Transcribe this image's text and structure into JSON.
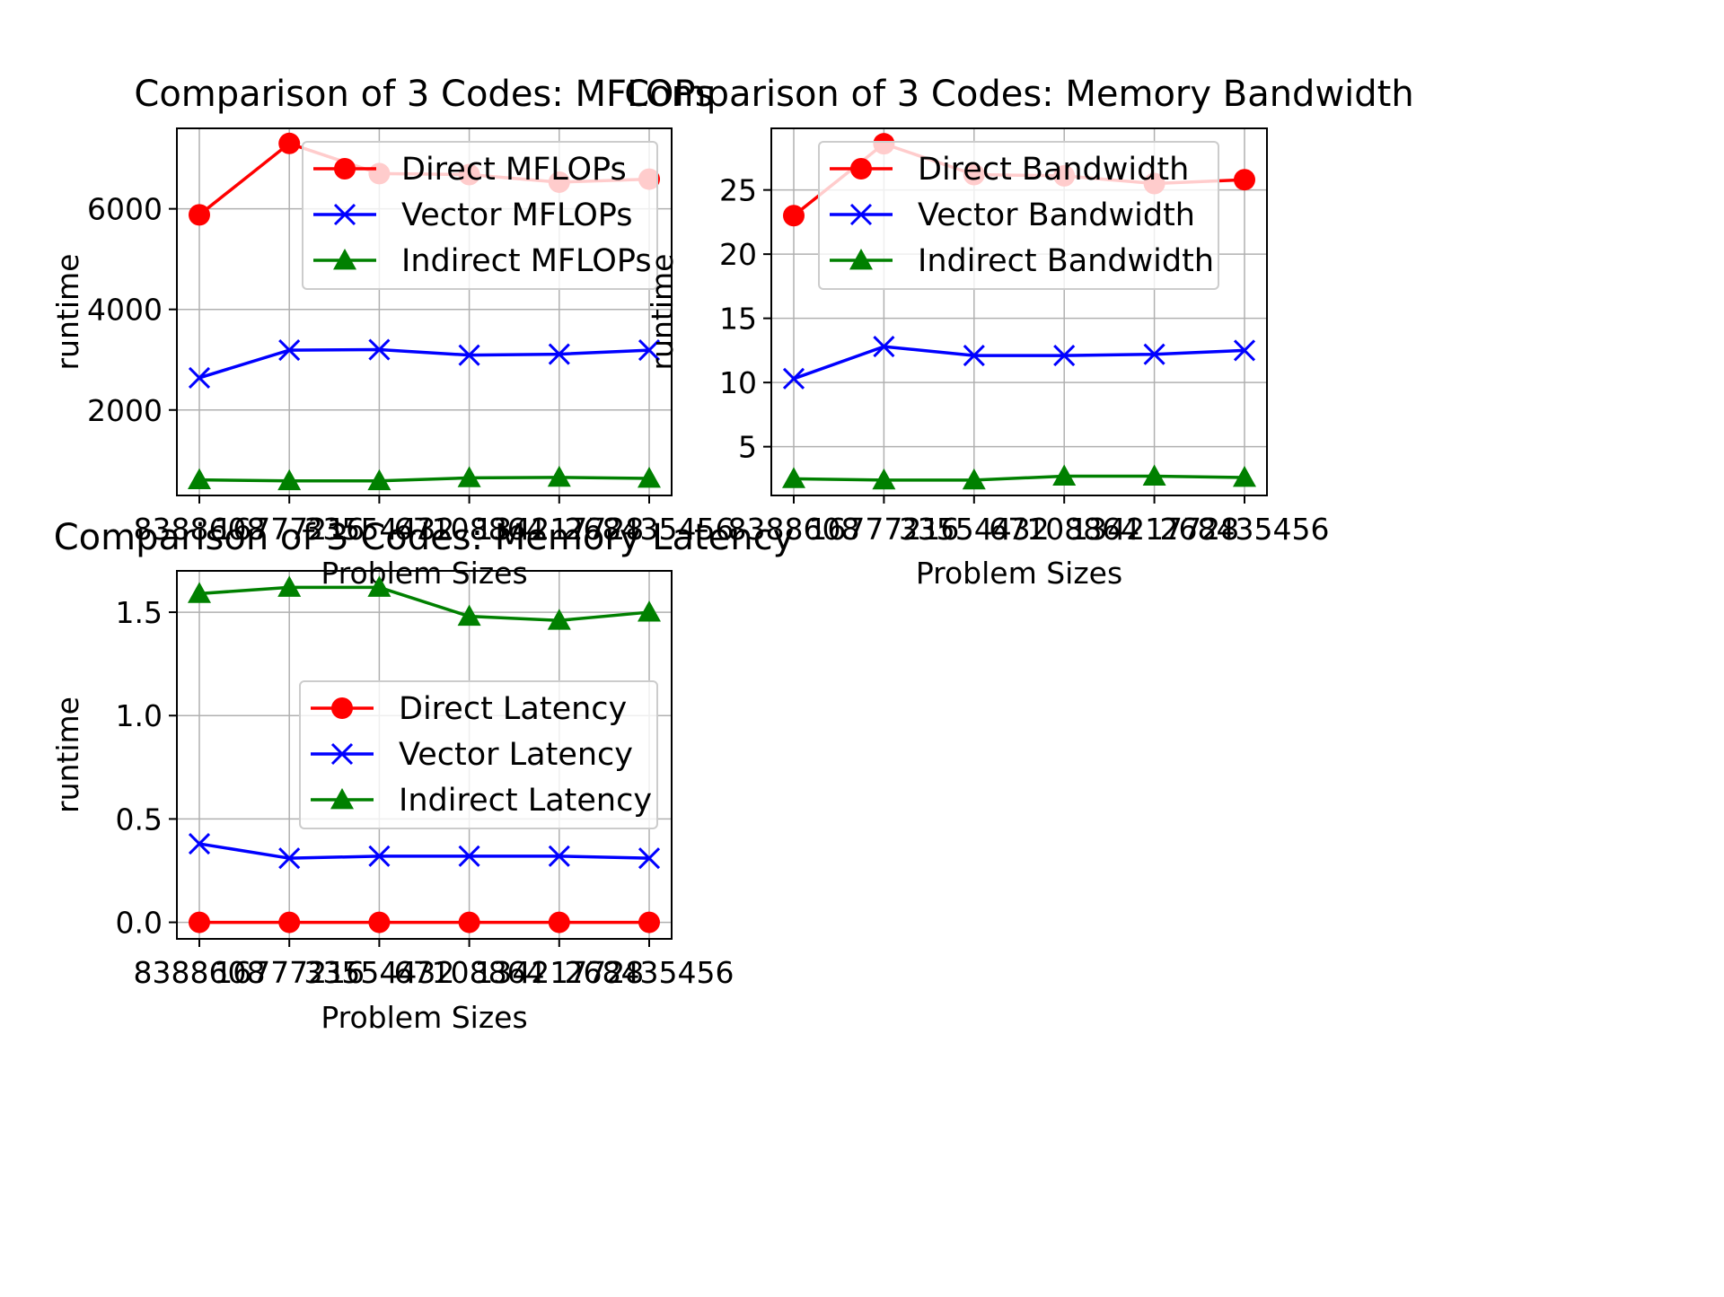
{
  "chart_data": [
    {
      "type": "line",
      "title": "Comparison of 3 Codes: MFLOPs",
      "xlabel": "Problem Sizes",
      "ylabel": "runtime",
      "categories": [
        "8388608",
        "16777216",
        "33554432",
        "67108864",
        "134217728",
        "268435456"
      ],
      "yticks": [
        2000,
        4000,
        6000
      ],
      "ylim": [
        300,
        7600
      ],
      "grid": true,
      "legend_position": "upper right",
      "series": [
        {
          "name": "Direct MFLOPs",
          "color": "#ff0000",
          "marker": "circle",
          "values": [
            5880,
            7300,
            6700,
            6680,
            6530,
            6590
          ]
        },
        {
          "name": "Vector MFLOPs",
          "color": "#0000ff",
          "marker": "x",
          "values": [
            2640,
            3190,
            3200,
            3090,
            3110,
            3190
          ]
        },
        {
          "name": "Indirect MFLOPs",
          "color": "#008000",
          "marker": "triangle",
          "values": [
            610,
            590,
            590,
            650,
            660,
            640
          ]
        }
      ]
    },
    {
      "type": "line",
      "title": "Comparison of 3 Codes: Memory Bandwidth",
      "xlabel": "Problem Sizes",
      "ylabel": "runtime",
      "categories": [
        "8388608",
        "16777216",
        "33554432",
        "67108864",
        "134217728",
        "268435456"
      ],
      "yticks": [
        5,
        10,
        15,
        20,
        25
      ],
      "ylim": [
        1.2,
        29.8
      ],
      "grid": true,
      "legend_position": "upper right",
      "series": [
        {
          "name": "Direct Bandwidth",
          "color": "#ff0000",
          "marker": "circle",
          "values": [
            23.0,
            28.6,
            26.2,
            26.1,
            25.5,
            25.8
          ]
        },
        {
          "name": "Vector Bandwidth",
          "color": "#0000ff",
          "marker": "x",
          "values": [
            10.3,
            12.8,
            12.1,
            12.1,
            12.2,
            12.5
          ]
        },
        {
          "name": "Indirect Bandwidth",
          "color": "#008000",
          "marker": "triangle",
          "values": [
            2.5,
            2.4,
            2.4,
            2.7,
            2.7,
            2.6
          ]
        }
      ]
    },
    {
      "type": "line",
      "title": "Comparison of 3 Codes: Memory Latency",
      "xlabel": "Problem Sizes",
      "ylabel": "runtime",
      "categories": [
        "8388608",
        "16777216",
        "33554432",
        "67108864",
        "134217728",
        "268435456"
      ],
      "yticks": [
        "0.0",
        "0.5",
        "1.0",
        "1.5"
      ],
      "ylim": [
        -0.08,
        1.7
      ],
      "grid": true,
      "legend_position": "center right",
      "series": [
        {
          "name": "Direct Latency",
          "color": "#ff0000",
          "marker": "circle",
          "values": [
            0.0,
            0.0,
            0.0,
            0.0,
            0.0,
            0.0
          ]
        },
        {
          "name": "Vector Latency",
          "color": "#0000ff",
          "marker": "x",
          "values": [
            0.38,
            0.31,
            0.32,
            0.32,
            0.32,
            0.31
          ]
        },
        {
          "name": "Indirect Latency",
          "color": "#008000",
          "marker": "triangle",
          "values": [
            1.59,
            1.62,
            1.62,
            1.48,
            1.46,
            1.5
          ]
        }
      ]
    }
  ]
}
